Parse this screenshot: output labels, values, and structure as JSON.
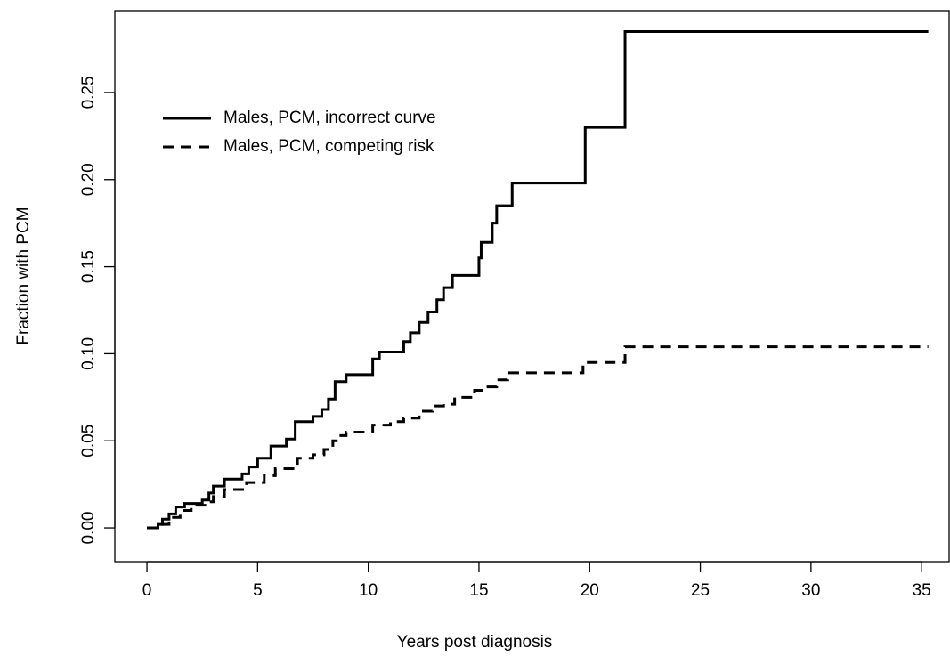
{
  "chart_data": {
    "type": "step",
    "x_label": "Years post diagnosis",
    "y_label": "Fraction with PCM",
    "xlim": [
      -1.45,
      36.24
    ],
    "ylim": [
      -0.0194,
      0.297
    ],
    "xticks": [
      0,
      5,
      10,
      15,
      20,
      25,
      30,
      35
    ],
    "yticks": [
      {
        "value": 0,
        "label": "0.00"
      },
      0.05,
      {
        "value": 0.1,
        "label": "0.10"
      },
      0.15,
      {
        "value": 0.2,
        "label": "0.20"
      },
      0.25
    ],
    "legend": "top-left",
    "series": [
      {
        "name": "Males, PCM, incorrect curve",
        "color": "#000000",
        "linestyle": "solid",
        "x": [
          0,
          0.5,
          0.7,
          1.0,
          1.3,
          1.7,
          2.5,
          2.8,
          3.0,
          3.5,
          4.3,
          4.6,
          5.0,
          5.6,
          6.3,
          6.7,
          7.5,
          7.9,
          8.2,
          8.5,
          9.0,
          10.2,
          10.5,
          11.6,
          11.9,
          12.3,
          12.7,
          13.1,
          13.4,
          13.8,
          15.0,
          15.1,
          15.6,
          15.8,
          16.5,
          19.8,
          21.6,
          35.3
        ],
        "values": [
          0,
          0.002,
          0.005,
          0.008,
          0.012,
          0.014,
          0.016,
          0.02,
          0.024,
          0.028,
          0.031,
          0.035,
          0.04,
          0.047,
          0.051,
          0.061,
          0.064,
          0.068,
          0.074,
          0.084,
          0.088,
          0.097,
          0.101,
          0.107,
          0.112,
          0.118,
          0.124,
          0.131,
          0.138,
          0.145,
          0.155,
          0.164,
          0.175,
          0.185,
          0.198,
          0.23,
          0.285,
          0.285
        ]
      },
      {
        "name": "Males, PCM, competing risk",
        "color": "#000000",
        "linestyle": "dashed",
        "x": [
          0,
          0.5,
          1.0,
          1.5,
          2.0,
          2.8,
          3.0,
          3.5,
          4.5,
          5.3,
          5.8,
          6.8,
          7.5,
          8.0,
          8.4,
          8.7,
          9.0,
          10.2,
          11.0,
          11.6,
          12.3,
          12.9,
          13.4,
          13.9,
          14.8,
          15.2,
          15.8,
          16.3,
          19.7,
          21.6,
          35.3
        ],
        "values": [
          0,
          0.002,
          0.006,
          0.01,
          0.013,
          0.015,
          0.018,
          0.022,
          0.026,
          0.03,
          0.034,
          0.04,
          0.042,
          0.045,
          0.05,
          0.053,
          0.055,
          0.059,
          0.061,
          0.063,
          0.067,
          0.07,
          0.071,
          0.075,
          0.079,
          0.081,
          0.085,
          0.089,
          0.095,
          0.104,
          0.104
        ]
      }
    ]
  }
}
